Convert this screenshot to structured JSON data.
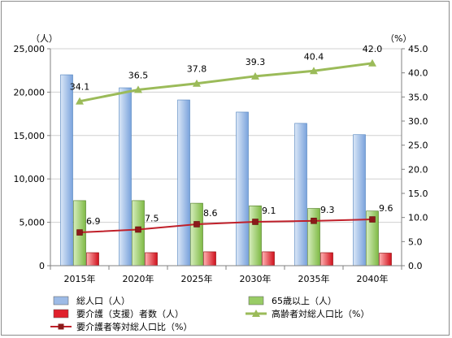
{
  "chart_data": {
    "type": "bar",
    "categories": [
      "2015年",
      "2020年",
      "2025年",
      "2030年",
      "2035年",
      "2040年"
    ],
    "series": [
      {
        "name": "総人口（人）",
        "kind": "bar",
        "axis": "left",
        "values": [
          22000,
          20500,
          19100,
          17700,
          16400,
          15100
        ],
        "color": "#9dbbe6"
      },
      {
        "name": "65歳以上（人）",
        "kind": "bar",
        "axis": "left",
        "values": [
          7500,
          7500,
          7200,
          6900,
          6600,
          6300
        ],
        "color": "#99cc66"
      },
      {
        "name": "要介護（支援）者数（人）",
        "kind": "bar",
        "axis": "left",
        "values": [
          1500,
          1500,
          1600,
          1600,
          1500,
          1450
        ],
        "color": "#e0202c"
      },
      {
        "name": "高齢者対総人口比（%）",
        "kind": "line",
        "axis": "right",
        "values": [
          34.1,
          36.5,
          37.8,
          39.3,
          40.4,
          42.0
        ],
        "labels": [
          "34.1",
          "36.5",
          "37.8",
          "39.3",
          "40.4",
          "42.0"
        ],
        "color": "#9bbb59"
      },
      {
        "name": "要介護者等対総人口比（%）",
        "kind": "line",
        "axis": "right",
        "values": [
          6.9,
          7.5,
          8.6,
          9.1,
          9.3,
          9.6
        ],
        "labels": [
          "6.9",
          "7.5",
          "8.6",
          "9.1",
          "9.3",
          "9.6"
        ],
        "color": "#c0202a"
      }
    ],
    "y_left": {
      "unit_label": "（人）",
      "ylim": [
        0,
        25000
      ],
      "ticks": [
        0,
        5000,
        10000,
        15000,
        20000,
        25000
      ],
      "tick_labels": [
        "0",
        "5,000",
        "10,000",
        "15,000",
        "20,000",
        "25,000"
      ]
    },
    "y_right": {
      "unit_label": "（%）",
      "ylim": [
        0,
        45
      ],
      "ticks": [
        0,
        5,
        10,
        15,
        20,
        25,
        30,
        35,
        40,
        45
      ],
      "tick_labels": [
        "0.0",
        "5.0",
        "10.0",
        "15.0",
        "20.0",
        "25.0",
        "30.0",
        "35.0",
        "40.0",
        "45.0"
      ]
    },
    "grid": true,
    "legend_position": "bottom"
  }
}
